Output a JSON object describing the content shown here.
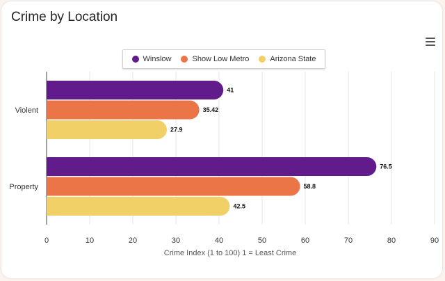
{
  "title": "Crime by Location",
  "menu_icon": "hamburger-menu-icon",
  "chart_data": {
    "type": "bar",
    "orientation": "horizontal",
    "categories": [
      "Violent",
      "Property"
    ],
    "series": [
      {
        "name": "Winslow",
        "color": "#621b8a",
        "values": [
          41,
          76.5
        ],
        "labels": [
          "41",
          "76.5"
        ]
      },
      {
        "name": "Show Low Metro",
        "color": "#ec7547",
        "values": [
          35.42,
          58.8
        ],
        "labels": [
          "35.42",
          "58.8"
        ]
      },
      {
        "name": "Arizona State",
        "color": "#f2d068",
        "values": [
          27.9,
          42.5
        ],
        "labels": [
          "27.9",
          "42.5"
        ]
      }
    ],
    "xlim": [
      0,
      90
    ],
    "xticks": [
      "0",
      "10",
      "20",
      "30",
      "40",
      "50",
      "60",
      "70",
      "80",
      "90"
    ],
    "xlabel": "Crime Index (1 to 100) 1 = Least Crime",
    "legend": "top-center",
    "grid": true
  }
}
